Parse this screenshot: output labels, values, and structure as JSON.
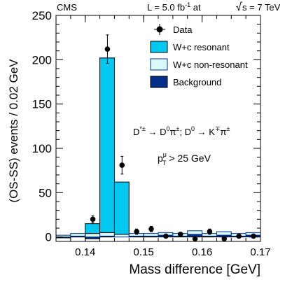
{
  "header": {
    "experiment": "CMS",
    "lumi_prefix": "L = 5.0 fb",
    "lumi_exp": "-1",
    "lumi_mid": " at ",
    "energy_after_root": "s = 7 TeV"
  },
  "annotations": {
    "decay_d_star": "D",
    "decay_d_star_sup": "*±",
    "decay_arrow_1": " → D",
    "decay_d0_sup": "0",
    "decay_pi": "π",
    "decay_pi_sup": "±",
    "decay_mid": "; D",
    "decay_d0b_sup": "0",
    "decay_arrow_2": " → K",
    "decay_k_sup": "∓",
    "decay_pi2": "π",
    "decay_pi2_sup": "±",
    "pt_p": "p",
    "pt_sup": "μ",
    "pt_sub": "T",
    "pt_cut": " > 25 GeV"
  },
  "colors": {
    "resonant": "#00c8f0",
    "nonresonant": "#d8f8fa",
    "background": "#00308c",
    "axis": "#000000"
  },
  "chart_data": {
    "type": "bar",
    "xlabel": "Mass difference [GeV]",
    "ylabel": "(OS-SS) events / 0.02 GeV",
    "xlim": [
      0.135,
      0.17
    ],
    "ylim": [
      -5,
      250
    ],
    "x_ticks": [
      "0.14",
      "0.15",
      "0.16",
      "0.17"
    ],
    "x_tick_values": [
      0.14,
      0.15,
      0.16,
      0.17
    ],
    "y_ticks": [
      "0",
      "50",
      "100",
      "150",
      "200",
      "250"
    ],
    "y_tick_values": [
      0,
      50,
      100,
      150,
      200,
      250
    ],
    "legend_position": "top-right",
    "legend": [
      {
        "key": "data",
        "label": "Data"
      },
      {
        "key": "resonant",
        "label": "W+c resonant"
      },
      {
        "key": "nonresonant",
        "label": "W+c non-resonant"
      },
      {
        "key": "background",
        "label": "Background"
      }
    ],
    "bin_edges": [
      0.135,
      0.1375,
      0.14,
      0.1425,
      0.145,
      0.1475,
      0.15,
      0.1525,
      0.155,
      0.1575,
      0.16,
      0.1625,
      0.165,
      0.1675,
      0.17
    ],
    "series": [
      {
        "name": "Background",
        "values": [
          -1,
          1,
          -2,
          1,
          0,
          1,
          1,
          2,
          1,
          3,
          1,
          2,
          1,
          2
        ]
      },
      {
        "name": "W+c non-resonant",
        "values": [
          2,
          3,
          4,
          4,
          3,
          3,
          3,
          3,
          3,
          4,
          3,
          4,
          3,
          3
        ]
      },
      {
        "name": "W+c resonant",
        "values": [
          0,
          0,
          11,
          197,
          59,
          0,
          0,
          0,
          0,
          0,
          0,
          0,
          0,
          0
        ]
      }
    ],
    "data_points": {
      "name": "Data",
      "x": [
        0.1413,
        0.1438,
        0.1463,
        0.1488,
        0.1513,
        0.1538,
        0.1563,
        0.1588,
        0.1613,
        0.1638,
        0.1663,
        0.1688
      ],
      "y": [
        20,
        212,
        81,
        6,
        9,
        1,
        3,
        -2,
        6,
        -2,
        1,
        1
      ],
      "err": [
        4,
        16,
        10,
        3,
        3,
        2,
        2,
        2,
        3,
        2,
        2,
        2
      ]
    }
  }
}
